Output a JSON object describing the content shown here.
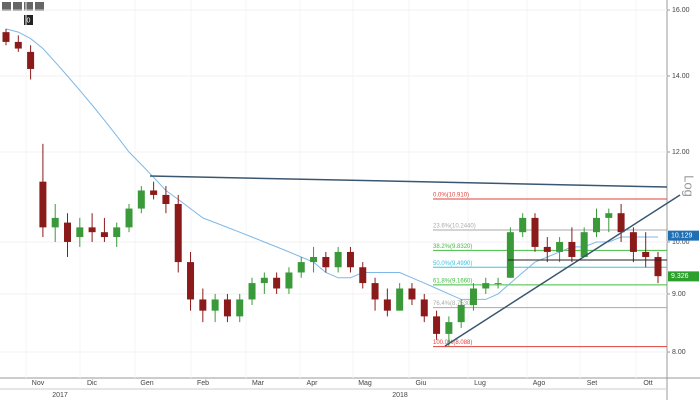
{
  "chart_data": {
    "type": "candlestick",
    "toolbar_badge": "0",
    "scale_label": "Log",
    "log_scale": true,
    "ylim": [
      7.59,
      16.33
    ],
    "yticks": [
      {
        "value": 8,
        "label": "8.00"
      },
      {
        "value": 9,
        "label": "9.00"
      },
      {
        "value": 10,
        "label": "10.00"
      },
      {
        "value": 12,
        "label": "12.00"
      },
      {
        "value": 14,
        "label": "14.00"
      },
      {
        "value": 16,
        "label": "16.00"
      }
    ],
    "months": [
      "Nov",
      "Dic",
      "Gen",
      "Feb",
      "Mar",
      "Apr",
      "Mag",
      "Giu",
      "Lug",
      "Ago",
      "Set",
      "Ott"
    ],
    "years": [
      "2017",
      "2018"
    ],
    "up_color": "#3a9a3a",
    "down_color": "#8b1a1a",
    "ma_color": "#7fb8e6",
    "open": [
      15.3,
      15.0,
      14.7,
      11.3,
      10.3,
      10.4,
      10.1,
      10.3,
      10.2,
      10.1,
      10.3,
      10.7,
      11.1,
      11.0,
      10.8,
      9.6,
      8.9,
      8.7,
      8.9,
      8.6,
      8.9,
      9.2,
      9.3,
      9.1,
      9.4,
      9.6,
      9.7,
      9.5,
      9.8,
      9.5,
      9.2,
      8.9,
      8.7,
      9.1,
      8.9,
      8.6,
      8.3,
      8.5,
      8.8,
      9.1,
      9.2,
      9.3,
      10.2,
      10.5,
      9.9,
      9.8,
      10.0,
      9.7,
      10.2,
      10.5,
      10.6,
      10.2,
      9.8,
      9.7
    ],
    "high": [
      15.4,
      15.2,
      14.9,
      12.2,
      10.8,
      10.6,
      10.5,
      10.6,
      10.5,
      10.4,
      10.8,
      11.2,
      11.3,
      11.2,
      11.0,
      9.8,
      9.1,
      9.0,
      9.0,
      9.0,
      9.3,
      9.4,
      9.4,
      9.5,
      9.7,
      9.9,
      9.8,
      9.9,
      9.9,
      9.6,
      9.3,
      9.1,
      9.2,
      9.2,
      9.0,
      8.7,
      8.6,
      8.9,
      9.2,
      9.3,
      9.3,
      10.3,
      10.6,
      10.6,
      10.1,
      10.1,
      10.3,
      10.3,
      10.7,
      10.7,
      10.8,
      10.3,
      10.2,
      9.8
    ],
    "low": [
      14.9,
      14.7,
      13.9,
      10.1,
      10.0,
      9.7,
      9.9,
      10.0,
      10.0,
      9.9,
      10.2,
      10.6,
      10.9,
      10.6,
      9.4,
      8.7,
      8.5,
      8.5,
      8.5,
      8.5,
      8.8,
      9.0,
      9.0,
      9.0,
      9.3,
      9.4,
      9.4,
      9.4,
      9.4,
      9.1,
      8.7,
      8.6,
      8.7,
      8.8,
      8.5,
      8.2,
      8.1,
      8.4,
      8.7,
      9.0,
      9.1,
      9.3,
      10.1,
      9.8,
      9.6,
      9.6,
      9.6,
      9.7,
      10.1,
      10.2,
      10.0,
      9.6,
      9.5,
      9.2
    ],
    "close": [
      15.0,
      14.8,
      14.2,
      10.3,
      10.5,
      10.0,
      10.3,
      10.2,
      10.1,
      10.3,
      10.7,
      11.1,
      11.0,
      10.8,
      9.6,
      8.9,
      8.7,
      8.9,
      8.6,
      8.9,
      9.2,
      9.3,
      9.1,
      9.4,
      9.6,
      9.7,
      9.5,
      9.8,
      9.5,
      9.2,
      8.9,
      8.7,
      9.1,
      8.9,
      8.6,
      8.3,
      8.5,
      8.8,
      9.1,
      9.2,
      9.2,
      10.2,
      10.5,
      9.9,
      9.8,
      10.0,
      9.7,
      10.2,
      10.5,
      10.6,
      10.2,
      9.8,
      9.7,
      9.33
    ],
    "ma": [
      15.4,
      15.3,
      15.1,
      14.8,
      14.4,
      14.0,
      13.6,
      13.2,
      12.8,
      12.4,
      12.0,
      11.7,
      11.4,
      11.1,
      10.9,
      10.7,
      10.5,
      10.4,
      10.3,
      10.2,
      10.1,
      10.0,
      9.9,
      9.8,
      9.7,
      9.6,
      9.4,
      9.3,
      9.3,
      9.4,
      9.4,
      9.4,
      9.4,
      9.3,
      9.2,
      9.1,
      9.0,
      8.9,
      8.9,
      8.9,
      9.0,
      9.2,
      9.4,
      9.6,
      9.7,
      9.8,
      9.9,
      9.9,
      10.0,
      10.0,
      10.1,
      10.1,
      10.1,
      10.1
    ],
    "fib_levels": [
      {
        "label": "0.0%(10.910)",
        "value": 10.91,
        "color": "#e0403a"
      },
      {
        "label": "23.6%(10.2440)",
        "value": 10.244,
        "color": "#aaaaaa"
      },
      {
        "label": "38.2%(9.8320)",
        "value": 9.832,
        "color": "#3fbf3f"
      },
      {
        "label": "50.0%(9.4990)",
        "value": 9.499,
        "color": "#40c0e0"
      },
      {
        "label": "61.8%(9.1660)",
        "value": 9.166,
        "color": "#3fbf3f"
      },
      {
        "label": "76.4%(8.7530)",
        "value": 8.753,
        "color": "#aaaaaa"
      },
      {
        "label": "100.0%(8.088)",
        "value": 8.088,
        "color": "#e0403a"
      }
    ],
    "price_tags": [
      {
        "value": 10.129,
        "color": "#1f6fb5"
      },
      {
        "value": 9.326,
        "color": "#2ca02c"
      }
    ]
  }
}
